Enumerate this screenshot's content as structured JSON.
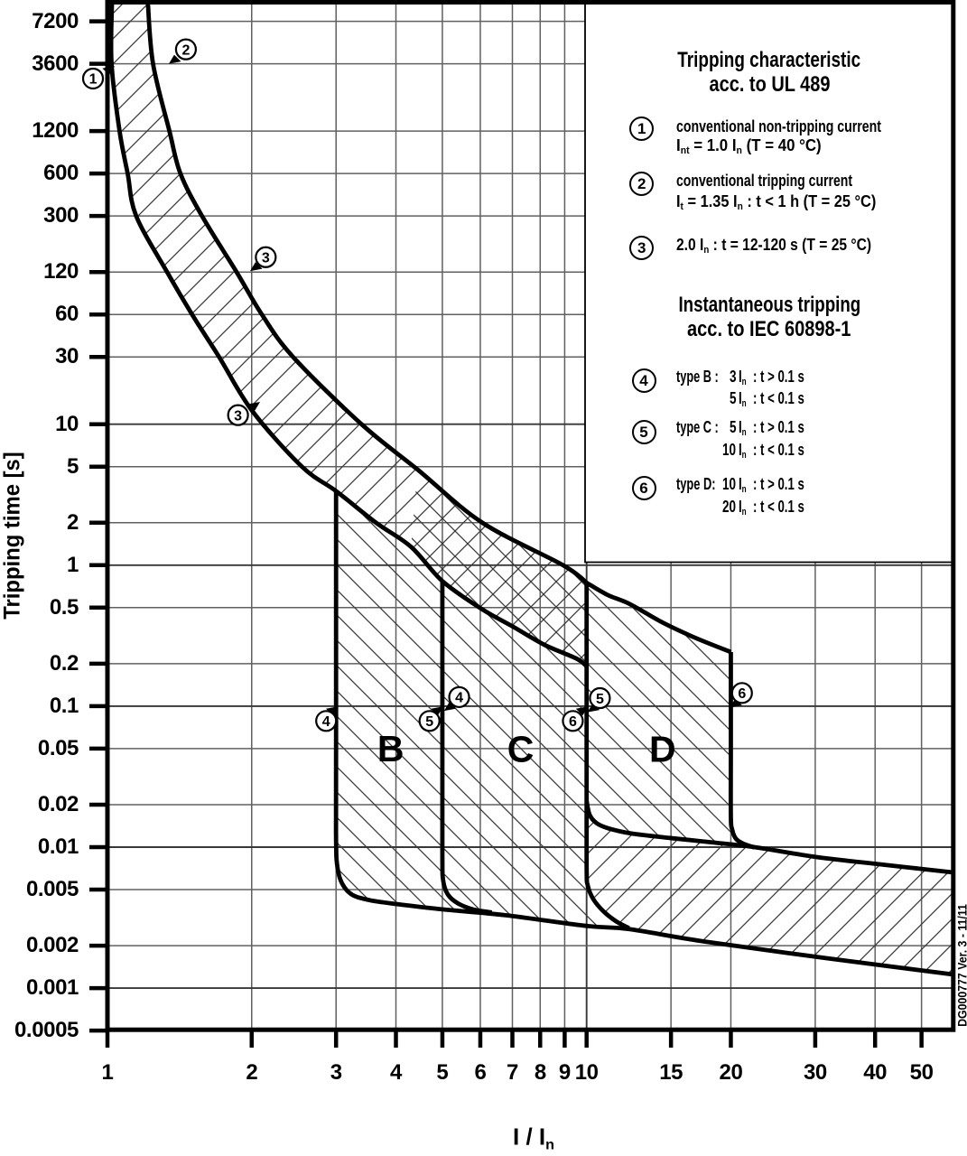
{
  "side_note": "DG000777 Ver. 3 - 11/11",
  "chart_data": {
    "type": "line",
    "log_x": true,
    "log_y": true,
    "x_axis": {
      "label": "I / I~n~",
      "range": [
        1,
        58
      ],
      "ticks": [
        "1",
        "2",
        "3",
        "4",
        "5",
        "6",
        "7",
        "8",
        "9",
        "10",
        "15",
        "20",
        "30",
        "40",
        "50"
      ],
      "tick_values": [
        1,
        2,
        3,
        4,
        5,
        6,
        7,
        8,
        9,
        10,
        15,
        20,
        30,
        40,
        50
      ]
    },
    "y_axis": {
      "label": "Tripping time [s]",
      "range": [
        0.0005,
        9900
      ],
      "ticks": [
        "7200",
        "3600",
        "1200",
        "600",
        "300",
        "120",
        "60",
        "30",
        "10",
        "5",
        "2",
        "1",
        "0.5",
        "0.2",
        "0.1",
        "0.05",
        "0.02",
        "0.01",
        "0.005",
        "0.002",
        "0.001",
        "0.0005"
      ],
      "tick_values": [
        7200,
        3600,
        1200,
        600,
        300,
        120,
        60,
        30,
        10,
        5,
        2,
        1,
        0.5,
        0.2,
        0.1,
        0.05,
        0.02,
        0.01,
        0.005,
        0.002,
        0.001,
        0.0005
      ]
    },
    "colors": {
      "line": "#000000",
      "grid": "#606060",
      "grid_major": "#383838",
      "hatch": "#383838",
      "background": "#ffffff"
    },
    "grid": true,
    "series": [
      {
        "name": "lower_thermal_limit",
        "points": [
          [
            1.022,
            9900
          ],
          [
            1.02,
            3600
          ],
          [
            1.06,
            1200
          ],
          [
            1.102,
            600
          ],
          [
            1.148,
            300
          ],
          [
            1.332,
            120
          ],
          [
            1.502,
            60
          ],
          [
            1.71,
            30
          ],
          [
            2.006,
            12.4
          ],
          [
            2.546,
            5.0
          ],
          [
            3.005,
            3.34
          ],
          [
            3.636,
            2.0
          ],
          [
            4.3,
            1.35
          ],
          [
            5.0,
            0.771
          ],
          [
            6.033,
            0.49
          ],
          [
            7.023,
            0.366
          ],
          [
            8.172,
            0.272
          ],
          [
            9.511,
            0.218
          ],
          [
            10.0,
            0.192
          ]
        ]
      },
      {
        "name": "upper_thermal_limit",
        "points": [
          [
            1.214,
            9900
          ],
          [
            1.245,
            3600
          ],
          [
            1.347,
            1200
          ],
          [
            1.42,
            600
          ],
          [
            1.575,
            300
          ],
          [
            1.86,
            120
          ],
          [
            2.1,
            60
          ],
          [
            2.44,
            30
          ],
          [
            3.39,
            10.0
          ],
          [
            4.44,
            4.76
          ],
          [
            6.06,
            2.0
          ],
          [
            8.93,
            1.0
          ],
          [
            10.0,
            0.75
          ]
        ]
      },
      {
        "name": "type_d_upper_limit",
        "points": [
          [
            10.0,
            0.75
          ],
          [
            11.06,
            0.615
          ],
          [
            12.31,
            0.53
          ],
          [
            14.4,
            0.392
          ],
          [
            16.87,
            0.305
          ],
          [
            20.0,
            0.242
          ]
        ]
      },
      {
        "name": "type_b_left_limit",
        "points": [
          [
            3.0,
            3.34
          ],
          [
            3.0,
            0.05
          ],
          [
            3.0,
            0.0113
          ],
          [
            3.02,
            0.0072
          ],
          [
            3.09,
            0.0055
          ],
          [
            3.24,
            0.0046
          ],
          [
            3.53,
            0.0042
          ],
          [
            4.0,
            0.00395
          ]
        ]
      },
      {
        "name": "instantaneous_lower_boundary",
        "points": [
          [
            4.0,
            0.00395
          ],
          [
            5.0,
            0.00362
          ],
          [
            6.77,
            0.00329
          ],
          [
            10.0,
            0.00276
          ],
          [
            12.26,
            0.00262
          ],
          [
            17.6,
            0.00214
          ],
          [
            31.7,
            0.00163
          ],
          [
            58.2,
            0.00125
          ]
        ]
      },
      {
        "name": "type_c_left_limit",
        "points": [
          [
            5.0,
            0.771
          ],
          [
            5.0,
            0.05
          ],
          [
            5.0,
            0.00876
          ],
          [
            5.02,
            0.00578
          ],
          [
            5.13,
            0.00463
          ],
          [
            5.37,
            0.00402
          ],
          [
            5.79,
            0.00362
          ],
          [
            6.34,
            0.00344
          ]
        ]
      },
      {
        "name": "type_d_left_limit",
        "points": [
          [
            10.0,
            0.75
          ],
          [
            10.0,
            0.05
          ],
          [
            10.0,
            0.00742
          ],
          [
            10.06,
            0.00532
          ],
          [
            10.33,
            0.00427
          ],
          [
            10.83,
            0.00352
          ],
          [
            11.5,
            0.00299
          ],
          [
            12.26,
            0.00266
          ]
        ]
      },
      {
        "name": "type_d_lower_boundary",
        "points": [
          [
            10.0,
            0.0212
          ],
          [
            10.15,
            0.0169
          ],
          [
            10.49,
            0.0148
          ],
          [
            11.1,
            0.0136
          ],
          [
            12.4,
            0.0125
          ],
          [
            14.96,
            0.0116
          ],
          [
            18.3,
            0.0108
          ],
          [
            22.4,
            0.01
          ],
          [
            30.2,
            0.0085
          ],
          [
            41.7,
            0.0075
          ],
          [
            58.2,
            0.00662
          ]
        ]
      },
      {
        "name": "type_d_right_limit",
        "points": [
          [
            20.0,
            0.242
          ],
          [
            20.0,
            0.05
          ],
          [
            20.0,
            0.0166
          ],
          [
            20.13,
            0.0133
          ],
          [
            20.48,
            0.0115
          ],
          [
            21.2,
            0.0106
          ],
          [
            22.4,
            0.00995
          ]
        ]
      }
    ],
    "hatched_regions": [
      {
        "name": "thermal_tripping_band",
        "hatch": "forward"
      },
      {
        "name": "instantaneous_tripping_band",
        "hatch": "forward"
      },
      {
        "name": "type_b_c_d_region",
        "hatch": "backward"
      }
    ],
    "region_labels": [
      {
        "text": "B",
        "at": [
          3.9,
          0.0506
        ]
      },
      {
        "text": "C",
        "at": [
          7.28,
          0.05
        ]
      },
      {
        "text": "D",
        "at": [
          14.4,
          0.0502
        ]
      }
    ],
    "markers": [
      {
        "label": "1",
        "at": [
          0.933,
          2830
        ],
        "tip": [
          1.035,
          3470
        ],
        "dir": "ne"
      },
      {
        "label": "2",
        "at": [
          1.458,
          4560
        ],
        "tip": [
          1.343,
          3600
        ],
        "dir": "sw"
      },
      {
        "label": "3",
        "at": [
          2.14,
          153
        ],
        "tip": [
          1.985,
          122
        ],
        "dir": "sw"
      },
      {
        "label": "3",
        "at": [
          1.873,
          11.6
        ],
        "tip": [
          2.082,
          14.4
        ],
        "dir": "ne"
      },
      {
        "label": "4",
        "at": [
          2.86,
          0.0785
        ],
        "tip": [
          3.03,
          0.0995
        ],
        "dir": "ne"
      },
      {
        "label": "5",
        "at": [
          4.7,
          0.0785
        ],
        "tip": [
          5.02,
          0.0995
        ],
        "dir": "ne"
      },
      {
        "label": "4",
        "at": [
          5.42,
          0.116
        ],
        "tip": [
          5.04,
          0.0926
        ],
        "dir": "sw"
      },
      {
        "label": "6",
        "at": [
          9.36,
          0.0785
        ],
        "tip": [
          10.07,
          0.0995
        ],
        "dir": "ne"
      },
      {
        "label": "5",
        "at": [
          10.66,
          0.114
        ],
        "tip": [
          10.04,
          0.0906
        ],
        "dir": "sw"
      },
      {
        "label": "6",
        "at": [
          21.1,
          0.124
        ],
        "tip": [
          19.9,
          0.0977
        ],
        "dir": "sw"
      }
    ],
    "legend": {
      "title_ul": [
        "Tripping characteristic",
        "acc. to UL 489"
      ],
      "items_ul": [
        {
          "num": "1",
          "lines": [
            "conventional non-tripping current",
            "I~nt~  = 1.0 I~n~   (T = 40 °C)"
          ]
        },
        {
          "num": "2",
          "lines": [
            "conventional tripping current",
            "I~t~  = 1.35 I~n~ :  t  < 1 h (T = 25 °C)"
          ]
        },
        {
          "num": "3",
          "lines": [
            "2.0 I~n~ :  t = 12-120 s (T = 25 °C)"
          ]
        }
      ],
      "title_iec": [
        "Instantaneous tripping",
        "acc. to IEC 60898-1"
      ],
      "items_iec": [
        {
          "num": "4",
          "type_label": "type B :",
          "rows": [
            [
              "3",
              "t > 0.1 s"
            ],
            [
              "5",
              "t < 0.1 s"
            ]
          ]
        },
        {
          "num": "5",
          "type_label": "type C :",
          "rows": [
            [
              "5",
              "t > 0.1 s"
            ],
            [
              "10",
              "t < 0.1 s"
            ]
          ]
        },
        {
          "num": "6",
          "type_label": "type D:",
          "rows": [
            [
              "10",
              "t > 0.1 s"
            ],
            [
              "20",
              "t < 0.1 s"
            ]
          ]
        }
      ]
    }
  }
}
